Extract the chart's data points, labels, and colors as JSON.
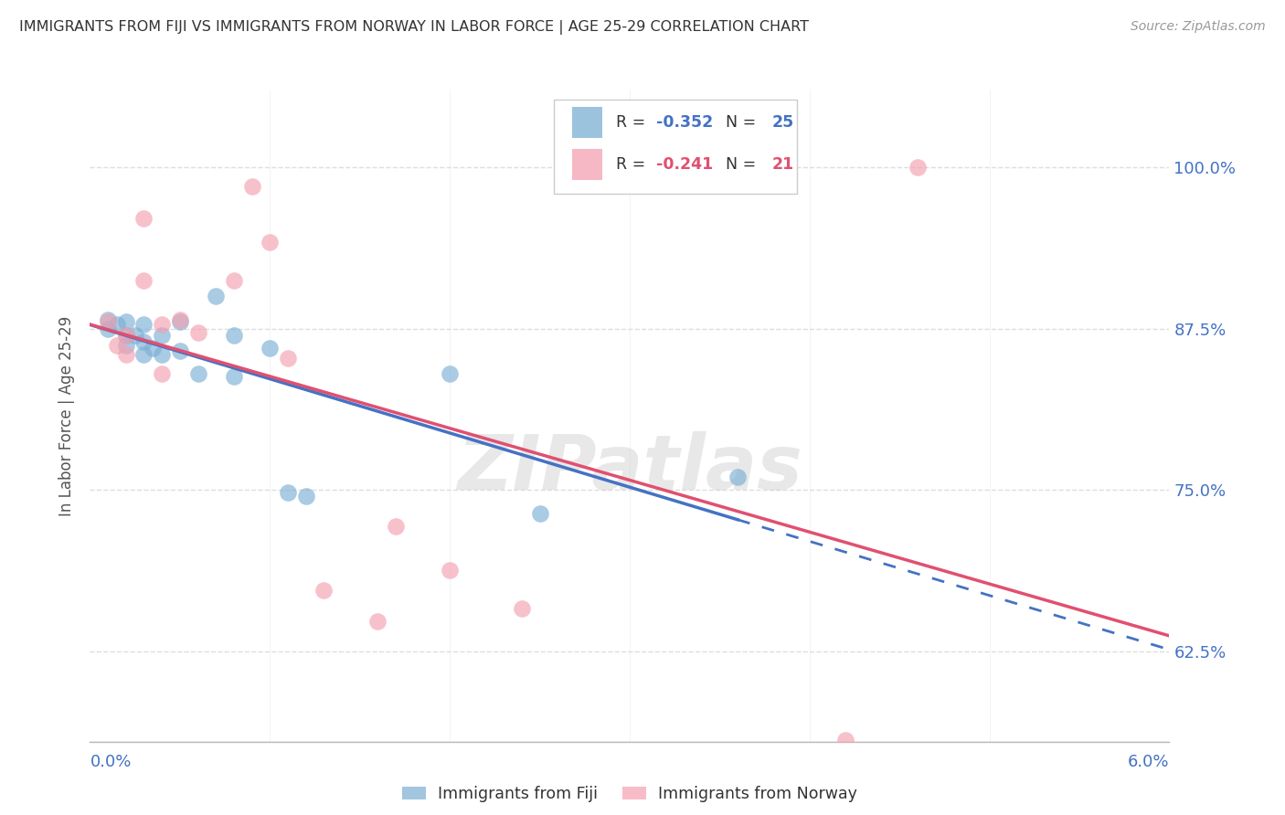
{
  "title": "IMMIGRANTS FROM FIJI VS IMMIGRANTS FROM NORWAY IN LABOR FORCE | AGE 25-29 CORRELATION CHART",
  "source": "Source: ZipAtlas.com",
  "ylabel": "In Labor Force | Age 25-29",
  "ytick_labels": [
    "62.5%",
    "75.0%",
    "87.5%",
    "100.0%"
  ],
  "ytick_values": [
    0.625,
    0.75,
    0.875,
    1.0
  ],
  "xlim": [
    0.0,
    0.06
  ],
  "ylim": [
    0.555,
    1.06
  ],
  "fiji_color": "#7bafd4",
  "norway_color": "#f4a0b0",
  "fiji_trend_color": "#4472c4",
  "norway_trend_color": "#e05070",
  "fiji_R": "-0.352",
  "fiji_N": "25",
  "norway_R": "-0.241",
  "norway_N": "21",
  "legend_fiji_label": "Immigrants from Fiji",
  "legend_norway_label": "Immigrants from Norway",
  "fiji_x": [
    0.001,
    0.001,
    0.0015,
    0.002,
    0.002,
    0.002,
    0.0025,
    0.003,
    0.003,
    0.003,
    0.0035,
    0.004,
    0.004,
    0.005,
    0.005,
    0.006,
    0.007,
    0.008,
    0.008,
    0.01,
    0.011,
    0.012,
    0.02,
    0.025,
    0.036
  ],
  "fiji_y": [
    0.882,
    0.875,
    0.878,
    0.88,
    0.87,
    0.862,
    0.87,
    0.878,
    0.865,
    0.855,
    0.86,
    0.87,
    0.855,
    0.88,
    0.858,
    0.84,
    0.9,
    0.87,
    0.838,
    0.86,
    0.748,
    0.745,
    0.84,
    0.732,
    0.76
  ],
  "norway_x": [
    0.001,
    0.0015,
    0.002,
    0.002,
    0.003,
    0.003,
    0.004,
    0.004,
    0.005,
    0.006,
    0.008,
    0.009,
    0.01,
    0.011,
    0.013,
    0.016,
    0.017,
    0.02,
    0.024,
    0.042,
    0.046
  ],
  "norway_y": [
    0.88,
    0.862,
    0.87,
    0.855,
    0.96,
    0.912,
    0.878,
    0.84,
    0.882,
    0.872,
    0.912,
    0.985,
    0.942,
    0.852,
    0.672,
    0.648,
    0.722,
    0.688,
    0.658,
    0.556,
    1.0
  ],
  "watermark": "ZIPatlas",
  "background_color": "#ffffff",
  "grid_color": "#dddddd",
  "title_color": "#333333",
  "source_color": "#999999",
  "axis_label_color": "#555555",
  "tick_color": "#4472c4"
}
